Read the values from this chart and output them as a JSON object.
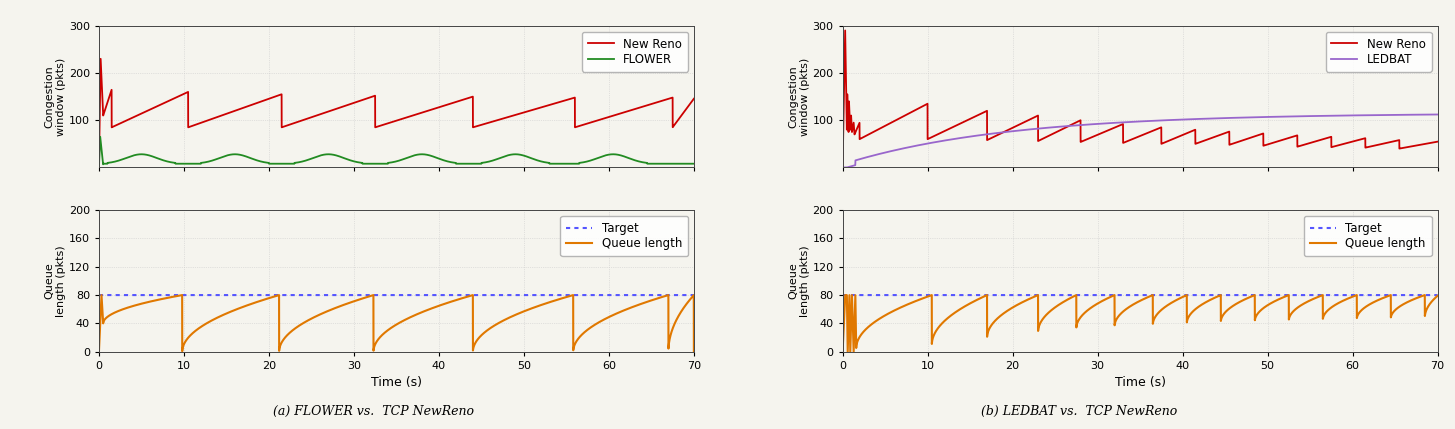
{
  "fig_width": 14.55,
  "fig_height": 4.29,
  "dpi": 100,
  "panel_a": {
    "title": "(a) FLOWER vs.  TCP NewReno",
    "cwnd_ylim": [
      0,
      300
    ],
    "cwnd_yticks": [
      100,
      200,
      300
    ],
    "cwnd_ylabel": "Congestion\nwindow (pkts)",
    "queue_ylim": [
      0,
      200
    ],
    "queue_yticks": [
      0,
      40,
      80,
      120,
      160,
      200
    ],
    "queue_ylabel": "Queue\nlength (pkts)",
    "xlabel": "Time (s)",
    "xlim": [
      0,
      70
    ],
    "xticks": [
      0,
      10,
      20,
      30,
      40,
      50,
      60,
      70
    ],
    "target_queue": 80,
    "legend_cwnd": [
      "New Reno",
      "FLOWER"
    ],
    "legend_queue": [
      "Target",
      "Queue length"
    ],
    "newreno_color": "#cc0000",
    "flower_color": "#228b22",
    "target_color": "#5555ff",
    "queue_color": "#e07800",
    "newreno_linewidth": 1.3,
    "flower_linewidth": 1.3,
    "target_linewidth": 1.5,
    "queue_linewidth": 1.5
  },
  "panel_b": {
    "title": "(b) LEDBAT vs.  TCP NewReno",
    "cwnd_ylim": [
      0,
      300
    ],
    "cwnd_yticks": [
      100,
      200,
      300
    ],
    "cwnd_ylabel": "Congestion\nwindow (pkts)",
    "queue_ylim": [
      0,
      200
    ],
    "queue_yticks": [
      0,
      40,
      80,
      120,
      160,
      200
    ],
    "queue_ylabel": "Queue\nlength (pkts)",
    "xlabel": "Time (s)",
    "xlim": [
      0,
      70
    ],
    "xticks": [
      0,
      10,
      20,
      30,
      40,
      50,
      60,
      70
    ],
    "target_queue": 80,
    "legend_cwnd": [
      "New Reno",
      "LEDBAT"
    ],
    "legend_queue": [
      "Target",
      "Queue length"
    ],
    "newreno_color": "#cc0000",
    "ledbat_color": "#9966cc",
    "target_color": "#5555ff",
    "queue_color": "#e07800",
    "newreno_linewidth": 1.3,
    "ledbat_linewidth": 1.3,
    "target_linewidth": 1.5,
    "queue_linewidth": 1.5
  },
  "background_color": "#f5f4ee",
  "grid_color": "#cccccc",
  "grid_linewidth": 0.5,
  "grid_linestyle": ":"
}
